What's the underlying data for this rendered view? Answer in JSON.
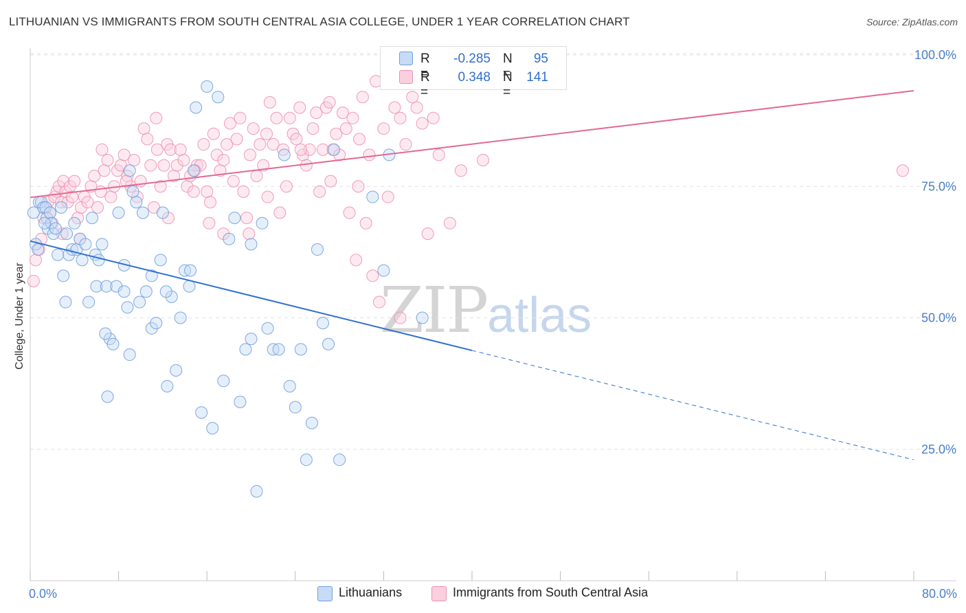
{
  "title": "LITHUANIAN VS IMMIGRANTS FROM SOUTH CENTRAL ASIA COLLEGE, UNDER 1 YEAR CORRELATION CHART",
  "source": "Source: ZipAtlas.com",
  "watermark": {
    "zip": "ZIP",
    "atlas": "atlas"
  },
  "colors": {
    "blue": "#6f9fde",
    "blue_line": "#2f6fcf",
    "pink": "#ee8fb0",
    "pink_line": "#e3688f",
    "axis_label": "#4a7fc8"
  },
  "stats": {
    "r_label": "R =",
    "n_label": "N =",
    "rows": [
      {
        "r": "-0.285",
        "n": "95",
        "color": "#6f9fde"
      },
      {
        "r": "0.348",
        "n": "141",
        "color": "#ee8fb0"
      }
    ]
  },
  "legend": [
    {
      "label": "Lithuanians",
      "color": "#6f9fde"
    },
    {
      "label": "Immigrants from South Central Asia",
      "color": "#ee8fb0"
    }
  ],
  "chart_data": {
    "type": "scatter",
    "title": "LITHUANIAN VS IMMIGRANTS FROM SOUTH CENTRAL ASIA COLLEGE, UNDER 1 YEAR CORRELATION CHART",
    "xlabel": "",
    "ylabel": "College, Under 1 year",
    "xlim": [
      0,
      80
    ],
    "ylim": [
      0,
      103
    ],
    "x_tick_labels": [
      "0.0%",
      "80.0%"
    ],
    "y_ticks": [
      25,
      50,
      75,
      100
    ],
    "y_tick_labels": [
      "25.0%",
      "50.0%",
      "75.0%",
      "100.0%"
    ],
    "grid": true,
    "legend_position": "bottom-center",
    "series": [
      {
        "name": "Lithuanians",
        "color": "#6f9fde",
        "trend": {
          "x": [
            0,
            40
          ],
          "y": [
            64.6,
            43.8
          ],
          "dashed_to": [
            80,
            23.0
          ]
        },
        "points": [
          [
            0.3,
            70
          ],
          [
            0.5,
            64
          ],
          [
            0.7,
            63
          ],
          [
            0.8,
            72
          ],
          [
            1.0,
            72
          ],
          [
            1.2,
            71
          ],
          [
            1.4,
            71
          ],
          [
            1.5,
            69
          ],
          [
            1.6,
            67
          ],
          [
            1.8,
            70
          ],
          [
            1.9,
            68
          ],
          [
            2.1,
            66
          ],
          [
            2.3,
            67
          ],
          [
            2.5,
            62
          ],
          [
            3.0,
            58
          ],
          [
            3.2,
            53
          ],
          [
            3.5,
            62
          ],
          [
            3.8,
            63
          ],
          [
            4.0,
            68
          ],
          [
            4.2,
            63
          ],
          [
            4.5,
            65
          ],
          [
            4.7,
            61
          ],
          [
            5.0,
            64
          ],
          [
            5.3,
            53
          ],
          [
            5.6,
            69
          ],
          [
            5.9,
            62
          ],
          [
            6.0,
            56
          ],
          [
            6.2,
            61
          ],
          [
            6.5,
            64
          ],
          [
            6.9,
            56
          ],
          [
            7.2,
            46
          ],
          [
            7.5,
            45
          ],
          [
            7.8,
            56
          ],
          [
            8.0,
            70
          ],
          [
            8.5,
            55
          ],
          [
            8.8,
            52
          ],
          [
            9.0,
            78
          ],
          [
            9.3,
            74
          ],
          [
            9.6,
            72
          ],
          [
            9.9,
            53
          ],
          [
            10.2,
            70
          ],
          [
            10.5,
            55
          ],
          [
            11.0,
            48
          ],
          [
            11.4,
            49
          ],
          [
            11.8,
            61
          ],
          [
            12.0,
            70
          ],
          [
            12.4,
            37
          ],
          [
            12.8,
            54
          ],
          [
            13.2,
            40
          ],
          [
            13.6,
            50
          ],
          [
            14.0,
            59
          ],
          [
            14.4,
            56
          ],
          [
            14.8,
            78
          ],
          [
            15.0,
            90
          ],
          [
            15.5,
            32
          ],
          [
            16.0,
            94
          ],
          [
            16.5,
            29
          ],
          [
            17.0,
            92
          ],
          [
            17.5,
            38
          ],
          [
            18.0,
            65
          ],
          [
            18.5,
            69
          ],
          [
            19.0,
            34
          ],
          [
            19.5,
            44
          ],
          [
            20.0,
            46
          ],
          [
            20.5,
            17
          ],
          [
            21.0,
            68
          ],
          [
            21.5,
            48
          ],
          [
            22.0,
            44
          ],
          [
            22.5,
            44
          ],
          [
            23.0,
            81
          ],
          [
            23.5,
            37
          ],
          [
            24.0,
            33
          ],
          [
            24.5,
            44
          ],
          [
            25.0,
            23
          ],
          [
            25.5,
            30
          ],
          [
            26.0,
            63
          ],
          [
            26.5,
            49
          ],
          [
            27.0,
            45
          ],
          [
            27.5,
            82
          ],
          [
            28.0,
            23
          ],
          [
            31.0,
            73
          ],
          [
            32.0,
            59
          ],
          [
            32.5,
            81
          ],
          [
            35.5,
            50
          ],
          [
            3.3,
            66
          ],
          [
            2.8,
            71
          ],
          [
            1.3,
            68
          ],
          [
            6.8,
            47
          ],
          [
            11.0,
            58
          ],
          [
            7.0,
            35
          ],
          [
            9.0,
            43
          ],
          [
            12.3,
            55
          ],
          [
            14.5,
            59
          ],
          [
            20.0,
            64
          ],
          [
            8.5,
            60
          ]
        ]
      },
      {
        "name": "Immigrants from South Central Asia",
        "color": "#ee8fb0",
        "trend": {
          "x": [
            0,
            80
          ],
          "y": [
            72.9,
            93.2
          ]
        },
        "points": [
          [
            0.3,
            57
          ],
          [
            0.5,
            61
          ],
          [
            0.8,
            63
          ],
          [
            1.0,
            65
          ],
          [
            1.2,
            69
          ],
          [
            1.4,
            71
          ],
          [
            1.6,
            72
          ],
          [
            1.8,
            70
          ],
          [
            2.0,
            68
          ],
          [
            2.2,
            73
          ],
          [
            2.4,
            74
          ],
          [
            2.6,
            75
          ],
          [
            2.8,
            72
          ],
          [
            3.0,
            76
          ],
          [
            3.2,
            74
          ],
          [
            3.4,
            72
          ],
          [
            3.6,
            75
          ],
          [
            3.8,
            73
          ],
          [
            4.0,
            76
          ],
          [
            4.3,
            69
          ],
          [
            4.6,
            71
          ],
          [
            4.9,
            73
          ],
          [
            5.2,
            72
          ],
          [
            5.5,
            75
          ],
          [
            5.8,
            77
          ],
          [
            6.1,
            71
          ],
          [
            6.4,
            74
          ],
          [
            6.7,
            78
          ],
          [
            7.0,
            80
          ],
          [
            7.3,
            73
          ],
          [
            7.6,
            75
          ],
          [
            7.9,
            78
          ],
          [
            8.2,
            79
          ],
          [
            8.5,
            81
          ],
          [
            8.8,
            77
          ],
          [
            9.1,
            75
          ],
          [
            9.4,
            80
          ],
          [
            9.7,
            73
          ],
          [
            10.0,
            76
          ],
          [
            10.3,
            86
          ],
          [
            10.6,
            84
          ],
          [
            10.9,
            79
          ],
          [
            11.2,
            71
          ],
          [
            11.5,
            82
          ],
          [
            11.8,
            75
          ],
          [
            12.1,
            79
          ],
          [
            12.4,
            83
          ],
          [
            12.7,
            82
          ],
          [
            13.0,
            77
          ],
          [
            13.3,
            79
          ],
          [
            13.6,
            82
          ],
          [
            13.9,
            80
          ],
          [
            14.2,
            75
          ],
          [
            14.5,
            77
          ],
          [
            14.8,
            74
          ],
          [
            15.1,
            79
          ],
          [
            15.4,
            79
          ],
          [
            15.7,
            83
          ],
          [
            16.0,
            74
          ],
          [
            16.3,
            72
          ],
          [
            16.6,
            85
          ],
          [
            16.9,
            81
          ],
          [
            17.2,
            78
          ],
          [
            17.5,
            80
          ],
          [
            17.8,
            83
          ],
          [
            18.1,
            87
          ],
          [
            18.4,
            76
          ],
          [
            18.7,
            84
          ],
          [
            19.0,
            88
          ],
          [
            19.3,
            74
          ],
          [
            19.6,
            69
          ],
          [
            19.9,
            81
          ],
          [
            20.2,
            86
          ],
          [
            20.5,
            77
          ],
          [
            20.8,
            83
          ],
          [
            21.1,
            79
          ],
          [
            21.4,
            85
          ],
          [
            21.7,
            91
          ],
          [
            22.0,
            83
          ],
          [
            22.3,
            88
          ],
          [
            22.6,
            70
          ],
          [
            22.9,
            82
          ],
          [
            23.2,
            75
          ],
          [
            23.5,
            88
          ],
          [
            23.8,
            85
          ],
          [
            24.1,
            84
          ],
          [
            24.4,
            90
          ],
          [
            24.7,
            81
          ],
          [
            25.0,
            79
          ],
          [
            25.3,
            82
          ],
          [
            25.6,
            86
          ],
          [
            25.9,
            89
          ],
          [
            26.2,
            74
          ],
          [
            26.5,
            82
          ],
          [
            26.8,
            90
          ],
          [
            27.1,
            91
          ],
          [
            27.4,
            82
          ],
          [
            27.7,
            85
          ],
          [
            28.0,
            81
          ],
          [
            28.3,
            89
          ],
          [
            28.6,
            86
          ],
          [
            28.9,
            70
          ],
          [
            29.2,
            88
          ],
          [
            29.5,
            61
          ],
          [
            29.8,
            84
          ],
          [
            30.1,
            92
          ],
          [
            30.4,
            68
          ],
          [
            30.7,
            81
          ],
          [
            31.0,
            58
          ],
          [
            31.3,
            95
          ],
          [
            31.6,
            53
          ],
          [
            32.0,
            86
          ],
          [
            32.4,
            73
          ],
          [
            33.0,
            90
          ],
          [
            33.5,
            88
          ],
          [
            34.0,
            83
          ],
          [
            34.6,
            92
          ],
          [
            35.0,
            90
          ],
          [
            35.5,
            87
          ],
          [
            36.0,
            66
          ],
          [
            36.5,
            88
          ],
          [
            37.0,
            81
          ],
          [
            38.0,
            68
          ],
          [
            39.0,
            78
          ],
          [
            41.0,
            80
          ],
          [
            12.5,
            69
          ],
          [
            17.5,
            66
          ],
          [
            21.5,
            73
          ],
          [
            16.2,
            68
          ],
          [
            19.8,
            66
          ],
          [
            24.5,
            82
          ],
          [
            27.2,
            76
          ],
          [
            29.7,
            75
          ],
          [
            8.7,
            76
          ],
          [
            6.5,
            82
          ],
          [
            4.5,
            65
          ],
          [
            2.9,
            66
          ],
          [
            11.4,
            88
          ],
          [
            14.9,
            78
          ],
          [
            33.5,
            50
          ],
          [
            79.0,
            78
          ]
        ]
      }
    ]
  }
}
